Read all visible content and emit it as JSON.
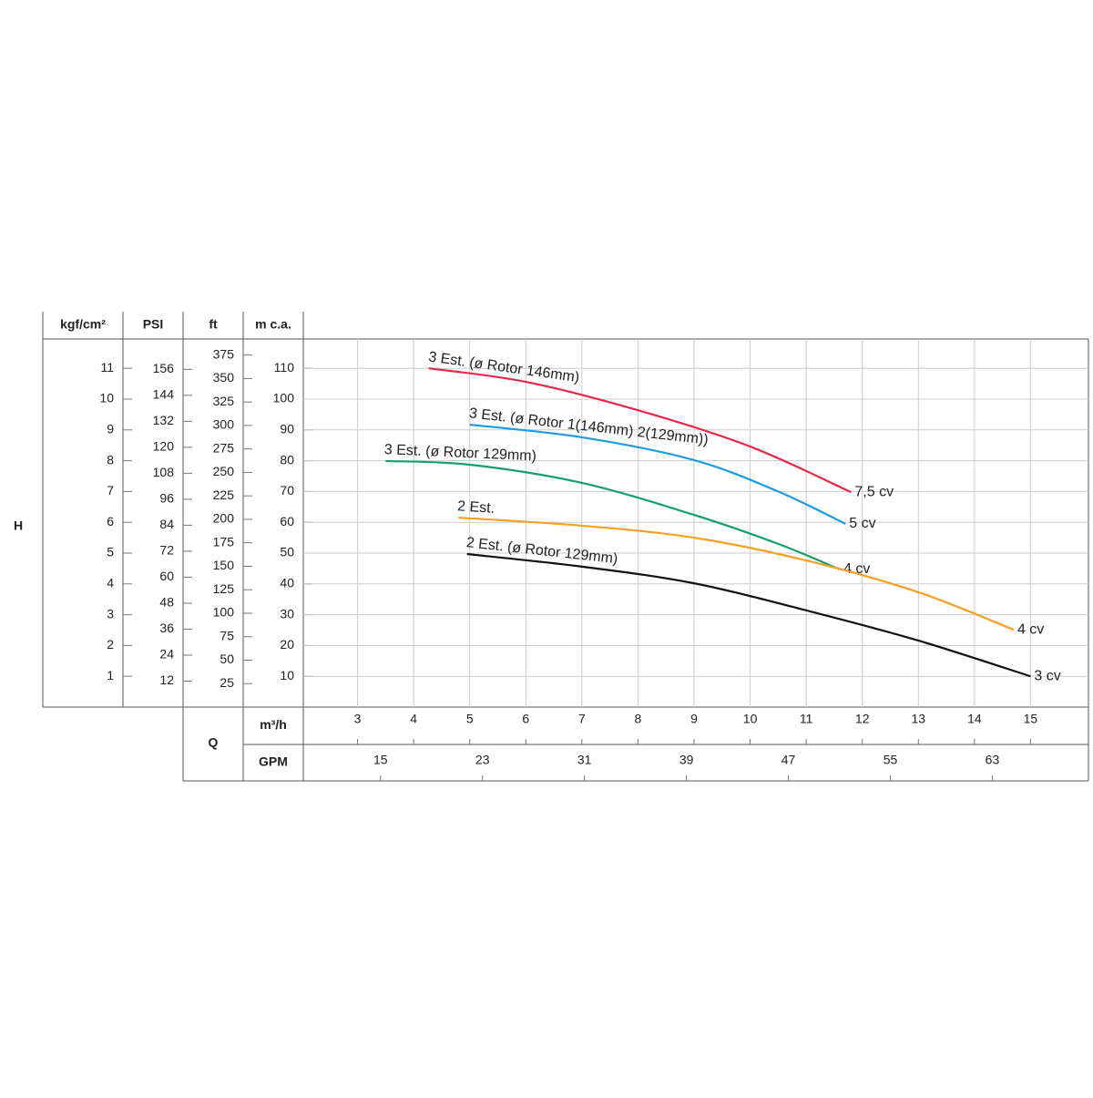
{
  "chart_data": {
    "type": "line",
    "y_title": "H",
    "x_title": "Q",
    "grid": true,
    "y_axes": [
      {
        "title": "kgf/cm²",
        "lim": [
          0,
          12
        ],
        "ticks": [
          1,
          2,
          3,
          4,
          5,
          6,
          7,
          8,
          9,
          10,
          11
        ]
      },
      {
        "title": "PSI",
        "lim": [
          0,
          170.7
        ],
        "ticks": [
          12,
          24,
          36,
          48,
          60,
          72,
          84,
          96,
          108,
          120,
          132,
          144,
          156
        ]
      },
      {
        "title": "ft",
        "lim": [
          0,
          393.7
        ],
        "ticks": [
          25,
          50,
          75,
          100,
          125,
          150,
          175,
          200,
          225,
          250,
          275,
          300,
          325,
          350,
          375
        ]
      },
      {
        "title": "m c.a.",
        "lim": [
          0,
          120
        ],
        "ticks": [
          10,
          20,
          30,
          40,
          50,
          60,
          70,
          80,
          90,
          100,
          110
        ]
      }
    ],
    "x_axes": [
      {
        "title": "m³/h",
        "lim": [
          2,
          16
        ],
        "ticks": [
          3,
          4,
          5,
          6,
          7,
          8,
          9,
          10,
          11,
          12,
          13,
          14,
          15
        ]
      },
      {
        "title": "GPM",
        "lim": [
          8.8,
          70.4
        ],
        "ticks": [
          15,
          23,
          31,
          39,
          47,
          55,
          63
        ]
      }
    ],
    "series": [
      {
        "name": "7,5 cv",
        "label": "3 Est. (ø Rotor 146mm)",
        "color": "#e8264a",
        "x": [
          4.27,
          6,
          8,
          10,
          11.8
        ],
        "values": [
          110,
          105.6,
          96.4,
          84.6,
          69.8
        ]
      },
      {
        "name": "5 cv",
        "label": "3 Est. (ø Rotor 1(146mm) 2(129mm))",
        "color": "#1e9be0",
        "x": [
          5,
          7,
          9,
          10.5,
          11.7
        ],
        "values": [
          91.7,
          87.6,
          80.2,
          70,
          59.5
        ]
      },
      {
        "name": "4 cv",
        "label": "3 Est. (ø Rotor 129mm)",
        "color": "#14a06e",
        "x": [
          3.5,
          5,
          7,
          9,
          10.5,
          11.6
        ],
        "values": [
          79.9,
          78.7,
          72.8,
          62.4,
          53,
          44.7
        ]
      },
      {
        "name": "4 cv",
        "label": "2 Est.",
        "color": "#f5a020",
        "x": [
          4.8,
          7,
          9,
          11,
          13,
          14.7
        ],
        "values": [
          61.5,
          58.9,
          55,
          47.6,
          37.3,
          25.1
        ]
      },
      {
        "name": "3 cv",
        "label": "2 Est. (ø Rotor 129mm)",
        "color": "#111111",
        "x": [
          4.95,
          7,
          9,
          11,
          13,
          15
        ],
        "values": [
          49.7,
          45.6,
          40.2,
          31.4,
          21.6,
          10
        ]
      }
    ]
  }
}
